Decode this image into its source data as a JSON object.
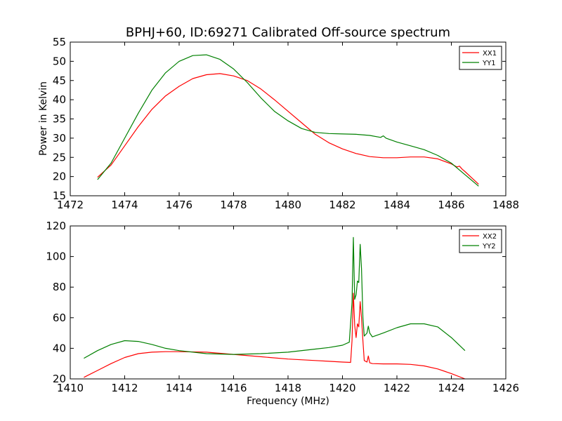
{
  "figure": {
    "title": "BPHJ+60, ID:69271 Calibrated Off-source spectrum"
  },
  "colors": {
    "red": "#ff0000",
    "green": "#008000",
    "axis": "#000000",
    "background": "#ffffff"
  },
  "chart_data": [
    {
      "type": "line",
      "title": "BPHJ+60, ID:69271 Calibrated Off-source spectrum",
      "xlabel": "",
      "ylabel": "Power in Kelvin",
      "xlim": [
        1472,
        1488
      ],
      "ylim": [
        15,
        55
      ],
      "xticks": [
        1472,
        1474,
        1476,
        1478,
        1480,
        1482,
        1484,
        1486,
        1488
      ],
      "yticks": [
        15,
        20,
        25,
        30,
        35,
        40,
        45,
        50,
        55
      ],
      "grid": false,
      "legend": "top-right",
      "series": [
        {
          "name": "XX1",
          "color": "#ff0000",
          "x": [
            1473.0,
            1473.5,
            1474.0,
            1474.5,
            1475.0,
            1475.5,
            1476.0,
            1476.5,
            1477.0,
            1477.5,
            1478.0,
            1478.5,
            1479.0,
            1479.5,
            1480.0,
            1480.5,
            1481.0,
            1481.5,
            1482.0,
            1482.5,
            1483.0,
            1483.5,
            1484.0,
            1484.5,
            1485.0,
            1485.5,
            1486.0,
            1486.2,
            1486.3,
            1486.4,
            1486.5,
            1487.0
          ],
          "y": [
            19.8,
            23.0,
            28.0,
            33.0,
            37.5,
            41.0,
            43.5,
            45.5,
            46.5,
            46.8,
            46.2,
            45.0,
            42.8,
            40.0,
            37.0,
            34.0,
            31.0,
            28.8,
            27.2,
            26.0,
            25.2,
            24.9,
            24.9,
            25.1,
            25.1,
            24.6,
            23.3,
            22.5,
            22.7,
            21.9,
            21.3,
            18.0
          ]
        },
        {
          "name": "YY1",
          "color": "#008000",
          "x": [
            1473.0,
            1473.5,
            1474.0,
            1474.5,
            1475.0,
            1475.5,
            1476.0,
            1476.5,
            1477.0,
            1477.5,
            1478.0,
            1478.5,
            1479.0,
            1479.5,
            1480.0,
            1480.5,
            1481.0,
            1481.5,
            1482.0,
            1482.5,
            1483.0,
            1483.4,
            1483.5,
            1483.6,
            1484.0,
            1484.5,
            1485.0,
            1485.5,
            1486.0,
            1486.5,
            1487.0
          ],
          "y": [
            19.2,
            23.5,
            30.0,
            36.5,
            42.5,
            47.0,
            50.0,
            51.5,
            51.7,
            50.5,
            48.0,
            44.5,
            40.5,
            37.0,
            34.5,
            32.5,
            31.5,
            31.2,
            31.1,
            31.0,
            30.7,
            30.2,
            30.6,
            30.0,
            29.0,
            28.0,
            27.0,
            25.5,
            23.5,
            20.5,
            17.5
          ]
        }
      ]
    },
    {
      "type": "line",
      "title": "",
      "xlabel": "Frequency (MHz)",
      "ylabel": "",
      "xlim": [
        1410,
        1426
      ],
      "ylim": [
        20,
        120
      ],
      "xticks": [
        1410,
        1412,
        1414,
        1416,
        1418,
        1420,
        1422,
        1424,
        1426
      ],
      "yticks": [
        20,
        40,
        60,
        80,
        100,
        120
      ],
      "grid": false,
      "legend": "top-right",
      "series": [
        {
          "name": "XX2",
          "color": "#ff0000",
          "x": [
            1410.5,
            1411.0,
            1411.5,
            1412.0,
            1412.5,
            1413.0,
            1413.5,
            1414.0,
            1415.0,
            1416.0,
            1417.0,
            1418.0,
            1419.0,
            1419.5,
            1420.0,
            1420.3,
            1420.35,
            1420.4,
            1420.45,
            1420.5,
            1420.55,
            1420.6,
            1420.65,
            1420.7,
            1420.75,
            1420.8,
            1420.9,
            1420.95,
            1421.0,
            1421.1,
            1421.5,
            1422.0,
            1422.5,
            1423.0,
            1423.5,
            1424.0,
            1424.5
          ],
          "y": [
            21.0,
            25.5,
            30.0,
            34.0,
            36.5,
            37.5,
            37.8,
            37.8,
            37.5,
            36.0,
            34.5,
            33.0,
            32.0,
            31.5,
            31.0,
            30.8,
            45.0,
            76.0,
            55.0,
            47.0,
            56.0,
            54.0,
            70.5,
            60.0,
            45.0,
            32.0,
            31.0,
            35.0,
            30.5,
            30.0,
            29.8,
            29.8,
            29.5,
            28.5,
            26.5,
            23.5,
            20.0
          ]
        },
        {
          "name": "YY2",
          "color": "#008000",
          "x": [
            1410.5,
            1411.0,
            1411.5,
            1412.0,
            1412.5,
            1413.0,
            1413.5,
            1414.0,
            1415.0,
            1416.0,
            1417.0,
            1418.0,
            1419.0,
            1419.5,
            1420.0,
            1420.25,
            1420.35,
            1420.4,
            1420.45,
            1420.5,
            1420.55,
            1420.6,
            1420.65,
            1420.7,
            1420.75,
            1420.8,
            1420.9,
            1420.95,
            1421.0,
            1421.1,
            1421.5,
            1422.0,
            1422.5,
            1423.0,
            1423.5,
            1424.0,
            1424.5
          ],
          "y": [
            33.5,
            38.5,
            42.5,
            45.0,
            44.5,
            42.5,
            40.0,
            38.5,
            36.5,
            36.0,
            36.5,
            37.5,
            39.5,
            40.5,
            42.0,
            44.0,
            70.0,
            112.5,
            72.0,
            75.0,
            84.0,
            83.0,
            108.0,
            92.0,
            60.0,
            48.0,
            50.0,
            54.5,
            50.0,
            47.5,
            50.0,
            53.5,
            56.0,
            56.0,
            54.0,
            47.0,
            38.5
          ]
        }
      ]
    }
  ]
}
